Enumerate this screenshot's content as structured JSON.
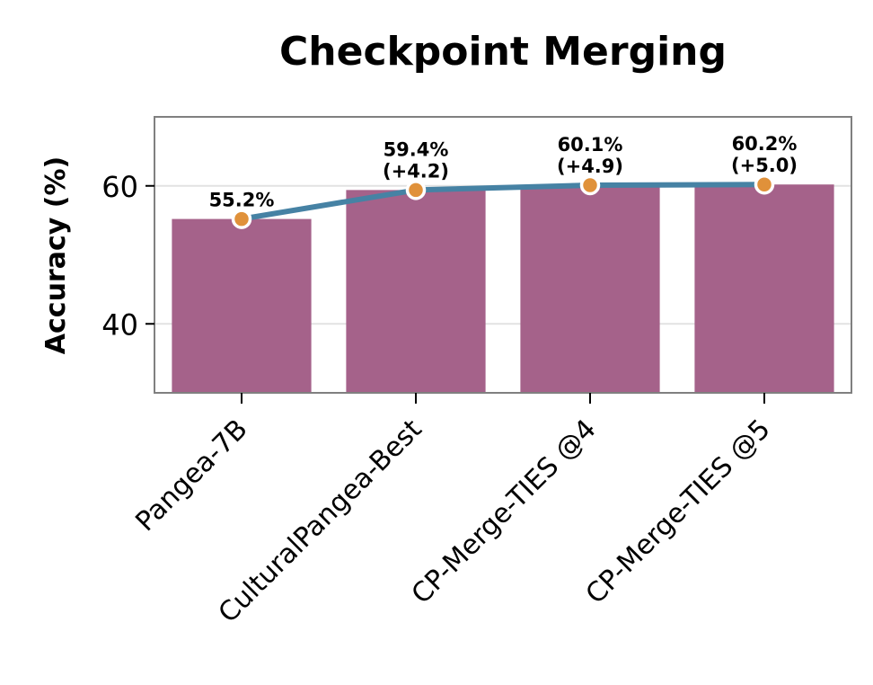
{
  "chart_data": {
    "type": "bar",
    "title": "Checkpoint Merging",
    "xlabel": "",
    "ylabel": "Accuracy (%)",
    "ylim": [
      30,
      70
    ],
    "yticks": [
      40,
      60
    ],
    "grid": "y",
    "categories": [
      "Pangea-7B",
      "CulturalPangea-Best",
      "CP-Merge-TIES @4",
      "CP-Merge-TIES @5"
    ],
    "series": [
      {
        "values": [
          55.2,
          59.4,
          60.1,
          60.2
        ],
        "style": "bar"
      },
      {
        "values": [
          55.2,
          59.4,
          60.1,
          60.2
        ],
        "style": "line-with-markers"
      }
    ],
    "data_labels": [
      [
        "55.2%"
      ],
      [
        "59.4%",
        "(+4.2)"
      ],
      [
        "60.1%",
        "(+4.9)"
      ],
      [
        "60.2%",
        "(+5.0)"
      ]
    ],
    "colors": {
      "bar": "#a5628a",
      "line": "#4682a4",
      "marker": "#e0913a",
      "marker_edge": "#ffffff",
      "frame": "#808080",
      "grid": "#e2e2e2"
    }
  }
}
